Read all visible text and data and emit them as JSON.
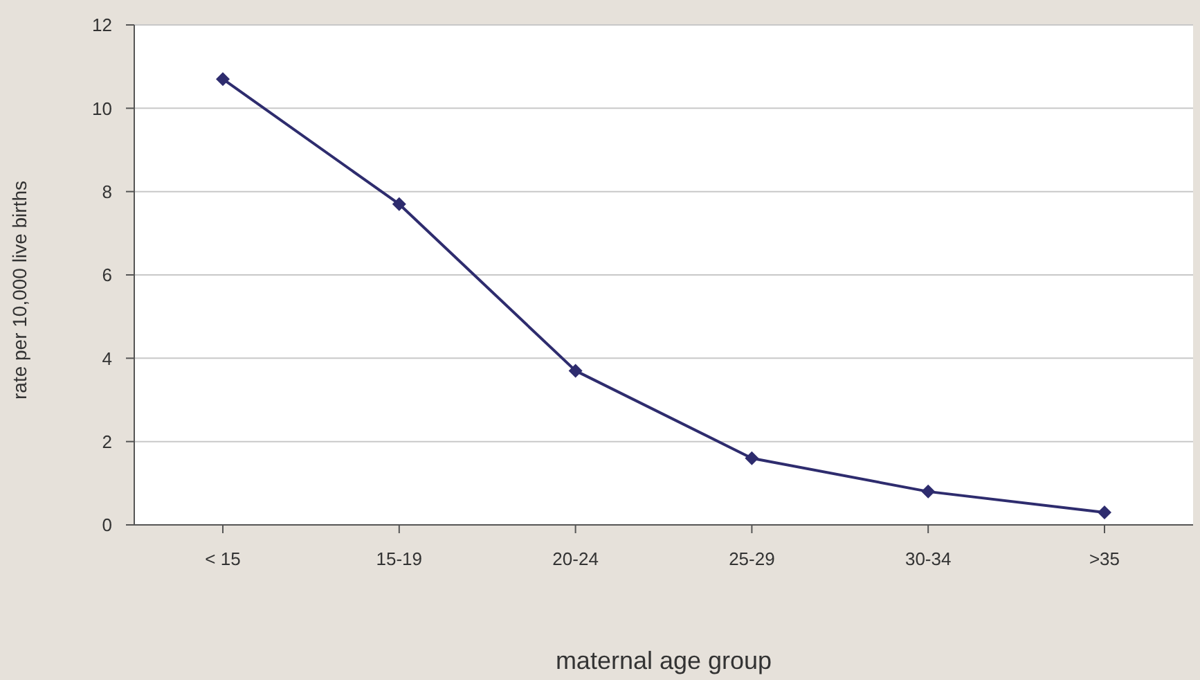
{
  "chart_data": {
    "type": "line",
    "xlabel": "maternal age group",
    "ylabel": "rate per 10,000 live births",
    "categories": [
      "< 15",
      "15-19",
      "20-24",
      "25-29",
      "30-34",
      ">35"
    ],
    "series": [
      {
        "color": "#2e2c6e",
        "values": [
          10.7,
          7.7,
          3.7,
          1.6,
          0.8,
          0.3
        ]
      }
    ],
    "ylim": [
      0,
      12
    ],
    "yticks": [
      0,
      2,
      4,
      6,
      8,
      10,
      12
    ],
    "grid": "y",
    "legend": false,
    "marker": "diamond",
    "line_style": "solid"
  }
}
